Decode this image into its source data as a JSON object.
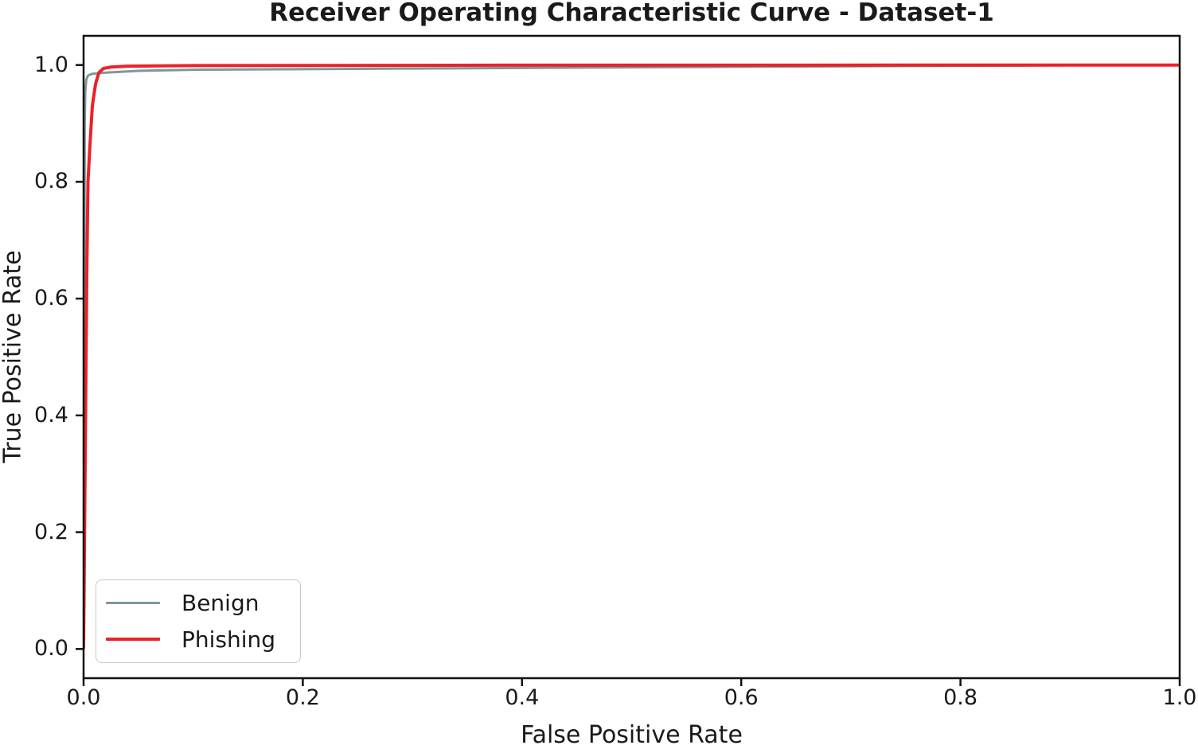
{
  "chart_data": {
    "type": "line",
    "title": "Receiver Operating Characteristic Curve - Dataset-1",
    "xlabel": "False Positive Rate",
    "ylabel": "True Positive Rate",
    "xlim": [
      0.0,
      1.0
    ],
    "ylim": [
      -0.05,
      1.05
    ],
    "x_ticks": [
      0.0,
      0.2,
      0.4,
      0.6,
      0.8,
      1.0
    ],
    "x_tick_labels": [
      "0.0",
      "0.2",
      "0.4",
      "0.6",
      "0.8",
      "1.0"
    ],
    "y_ticks": [
      0.0,
      0.2,
      0.4,
      0.6,
      0.8,
      1.0
    ],
    "y_tick_labels": [
      "0.0",
      "0.2",
      "0.4",
      "0.6",
      "0.8",
      "1.0"
    ],
    "grid": false,
    "legend_position": "lower-left",
    "axis_color": "#111111",
    "series": [
      {
        "name": "Benign",
        "color": "#7f969e",
        "line_width": 3,
        "points": [
          [
            0.0,
            0.0
          ],
          [
            0.001,
            0.9
          ],
          [
            0.0015,
            0.955
          ],
          [
            0.0025,
            0.975
          ],
          [
            0.004,
            0.982
          ],
          [
            0.008,
            0.985
          ],
          [
            0.02,
            0.987
          ],
          [
            0.05,
            0.99
          ],
          [
            0.1,
            0.992
          ],
          [
            0.3,
            0.994
          ],
          [
            0.6,
            0.997
          ],
          [
            0.9,
            0.9995
          ],
          [
            1.0,
            1.0
          ]
        ]
      },
      {
        "name": "Phishing",
        "color": "#ec2227",
        "line_width": 4,
        "points": [
          [
            0.0,
            0.0
          ],
          [
            0.002,
            0.45
          ],
          [
            0.003,
            0.65
          ],
          [
            0.004,
            0.8
          ],
          [
            0.006,
            0.87
          ],
          [
            0.008,
            0.93
          ],
          [
            0.011,
            0.968
          ],
          [
            0.014,
            0.987
          ],
          [
            0.018,
            0.994
          ],
          [
            0.025,
            0.9965
          ],
          [
            0.04,
            0.998
          ],
          [
            0.1,
            0.999
          ],
          [
            0.4,
            0.9997
          ],
          [
            1.0,
            1.0
          ]
        ]
      }
    ]
  }
}
